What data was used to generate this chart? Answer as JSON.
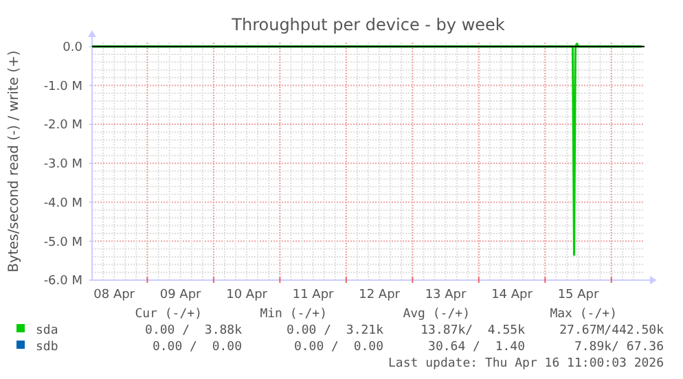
{
  "chart_data": {
    "type": "line",
    "title": "Throughput per device - by week",
    "ylabel": "Bytes/second read (-) / write (+)",
    "xlim": [
      "2026-04-08T04:00",
      "2026-04-16T12:00"
    ],
    "xticks": [
      {
        "value": "2026-04-08T12:00",
        "label": "08 Apr"
      },
      {
        "value": "2026-04-09T00:00",
        "label": null
      },
      {
        "value": "2026-04-09T12:00",
        "label": "09 Apr"
      },
      {
        "value": "2026-04-10T00:00",
        "label": null
      },
      {
        "value": "2026-04-10T12:00",
        "label": "10 Apr"
      },
      {
        "value": "2026-04-11T00:00",
        "label": null
      },
      {
        "value": "2026-04-11T12:00",
        "label": "11 Apr"
      },
      {
        "value": "2026-04-12T00:00",
        "label": null
      },
      {
        "value": "2026-04-12T12:00",
        "label": "12 Apr"
      },
      {
        "value": "2026-04-13T00:00",
        "label": null
      },
      {
        "value": "2026-04-13T12:00",
        "label": "13 Apr"
      },
      {
        "value": "2026-04-14T00:00",
        "label": null
      },
      {
        "value": "2026-04-14T12:00",
        "label": "14 Apr"
      },
      {
        "value": "2026-04-15T00:00",
        "label": null
      },
      {
        "value": "2026-04-15T12:00",
        "label": "15 Apr"
      },
      {
        "value": "2026-04-16T00:00",
        "label": null
      }
    ],
    "ylim": [
      -6,
      0.1
    ],
    "yticks": [
      {
        "value": -6,
        "label": "-6.0 M"
      },
      {
        "value": -5,
        "label": "-5.0 M"
      },
      {
        "value": -4,
        "label": "-4.0 M"
      },
      {
        "value": -3,
        "label": "-3.0 M"
      },
      {
        "value": -2,
        "label": "-2.0 M"
      },
      {
        "value": -1,
        "label": "-1.0 M"
      },
      {
        "value": 0,
        "label": "0.0"
      }
    ],
    "grid": true,
    "legend": "bottom",
    "marker": "none",
    "line_style": "solid",
    "ref_lines": [
      {
        "axis": "y",
        "value": 0,
        "color": "#000000"
      }
    ],
    "series": [
      {
        "name": "sda",
        "color": "#00cc00",
        "x": [
          "2026-04-08T04:00",
          "2026-04-15T10:00",
          "2026-04-15T10:30",
          "2026-04-15T11:00",
          "2026-04-16T11:00"
        ],
        "values": [
          0,
          0,
          -5.35,
          0,
          0
        ]
      },
      {
        "color": "#00cc00",
        "x": [
          "2026-04-08T04:00",
          "2026-04-15T11:00",
          "2026-04-15T11:30",
          "2026-04-15T12:00",
          "2026-04-16T11:00"
        ],
        "values": [
          0,
          0,
          0.07,
          0,
          0
        ]
      },
      {
        "name": "sdb",
        "color": "#0066b3"
      }
    ],
    "annotations": [
      "Cur (-/+)",
      "Min (-/+)",
      "Avg (-/+)",
      "Max (-/+)",
      "0.00 /  3.88k",
      "0.00 /  3.21k",
      "13.87k/  4.55k",
      "27.67M/442.50k",
      "0.00 /  0.00",
      "0.00 /  0.00",
      "30.64 /  1.40",
      "7.89k/ 67.36",
      "Last update: Thu Apr 16 11:00:03 2026"
    ]
  }
}
